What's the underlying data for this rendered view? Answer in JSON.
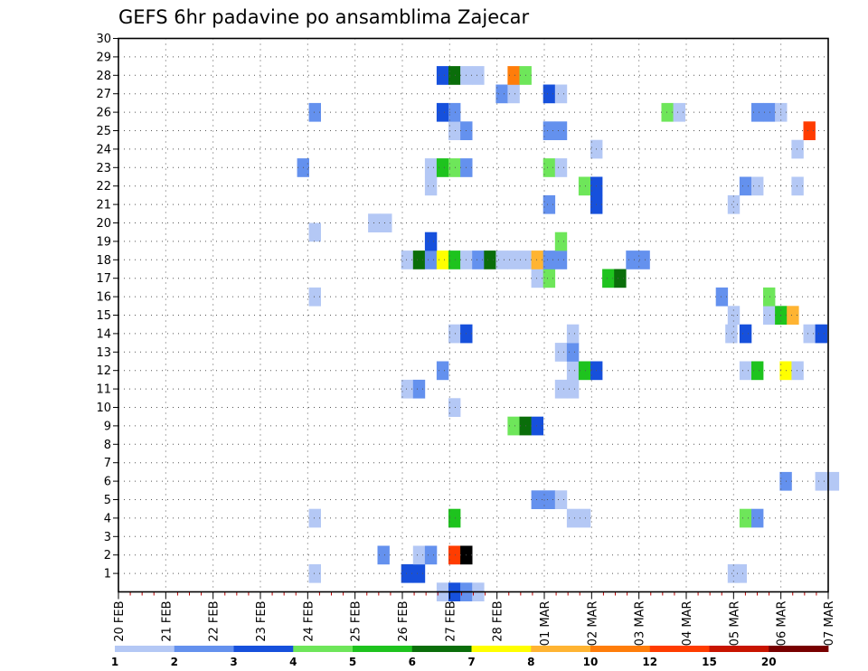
{
  "chart_data": {
    "type": "heatmap",
    "title": "GEFS 6hr padavine po ansamblima Zajecar",
    "x_labels": [
      "20 FEB",
      "21 FEB",
      "22 FEB",
      "23 FEB",
      "24 FEB",
      "25 FEB",
      "26 FEB",
      "27 FEB",
      "28 FEB",
      "01 MAR",
      "02 MAR",
      "03 MAR",
      "04 MAR",
      "05 MAR",
      "06 MAR",
      "07 MAR"
    ],
    "x_range_days": [
      0,
      15
    ],
    "y_ticks": [
      1,
      2,
      3,
      4,
      5,
      6,
      7,
      8,
      9,
      10,
      11,
      12,
      13,
      14,
      15,
      16,
      17,
      18,
      19,
      20,
      21,
      22,
      23,
      24,
      25,
      26,
      27,
      28,
      29,
      30
    ],
    "y_range": [
      0,
      30
    ],
    "grid": true,
    "legend": {
      "placement": "bottom",
      "labels": [
        "1",
        "2",
        "3",
        "4",
        "5",
        "6",
        "7",
        "8",
        "10",
        "12",
        "15",
        "20"
      ],
      "colors": [
        "#b4c8f5",
        "#6491ee",
        "#1650dc",
        "#6ee65a",
        "#1ec31e",
        "#0a6e0a",
        "#ffff00",
        "#ffb432",
        "#ff7d0a",
        "#ff3c00",
        "#c81400",
        "#780000"
      ]
    },
    "cells": [
      [
        6.85,
        0,
        1
      ],
      [
        7.1,
        0,
        3
      ],
      [
        7.35,
        0,
        2
      ],
      [
        7.6,
        0,
        1
      ],
      [
        4.15,
        1,
        1
      ],
      [
        6.1,
        1,
        3
      ],
      [
        6.35,
        1,
        3
      ],
      [
        13.0,
        1,
        1
      ],
      [
        13.15,
        1,
        1
      ],
      [
        5.6,
        2,
        2
      ],
      [
        6.35,
        2,
        1
      ],
      [
        6.6,
        2,
        2
      ],
      [
        7.1,
        2,
        10
      ],
      [
        7.35,
        2,
        15
      ],
      [
        4.15,
        4,
        1
      ],
      [
        7.1,
        4,
        5
      ],
      [
        9.6,
        4,
        1
      ],
      [
        9.85,
        4,
        1
      ],
      [
        13.25,
        4,
        4
      ],
      [
        13.5,
        4,
        2
      ],
      [
        8.85,
        5,
        2
      ],
      [
        9.1,
        5,
        2
      ],
      [
        9.35,
        5,
        1
      ],
      [
        14.1,
        6,
        2
      ],
      [
        14.85,
        6,
        1
      ],
      [
        15.1,
        6,
        1
      ],
      [
        8.35,
        9,
        4
      ],
      [
        8.6,
        9,
        6
      ],
      [
        8.85,
        9,
        3
      ],
      [
        7.1,
        10,
        1
      ],
      [
        6.1,
        11,
        1
      ],
      [
        6.35,
        11,
        2
      ],
      [
        9.35,
        11,
        1
      ],
      [
        9.6,
        11,
        1
      ],
      [
        6.85,
        12,
        2
      ],
      [
        9.6,
        12,
        1
      ],
      [
        9.85,
        12,
        5
      ],
      [
        10.1,
        12,
        3
      ],
      [
        13.25,
        12,
        1
      ],
      [
        13.5,
        12,
        5
      ],
      [
        14.1,
        12,
        7
      ],
      [
        14.35,
        12,
        1
      ],
      [
        9.35,
        13,
        1
      ],
      [
        9.6,
        13,
        2
      ],
      [
        7.1,
        14,
        1
      ],
      [
        7.35,
        14,
        3
      ],
      [
        9.6,
        14,
        1
      ],
      [
        12.95,
        14,
        1
      ],
      [
        13.25,
        14,
        3
      ],
      [
        14.6,
        14,
        1
      ],
      [
        14.85,
        14,
        3
      ],
      [
        13.0,
        15,
        1
      ],
      [
        13.75,
        15,
        1
      ],
      [
        14.0,
        15,
        5
      ],
      [
        14.25,
        15,
        8
      ],
      [
        4.15,
        16,
        1
      ],
      [
        12.75,
        16,
        2
      ],
      [
        13.75,
        16,
        4
      ],
      [
        8.85,
        17,
        1
      ],
      [
        9.1,
        17,
        4
      ],
      [
        10.35,
        17,
        5
      ],
      [
        10.6,
        17,
        6
      ],
      [
        6.1,
        18,
        1
      ],
      [
        6.35,
        18,
        6
      ],
      [
        6.6,
        18,
        2
      ],
      [
        6.85,
        18,
        7
      ],
      [
        7.1,
        18,
        5
      ],
      [
        7.35,
        18,
        1
      ],
      [
        7.6,
        18,
        2
      ],
      [
        7.85,
        18,
        6
      ],
      [
        8.1,
        18,
        1
      ],
      [
        8.35,
        18,
        1
      ],
      [
        8.6,
        18,
        1
      ],
      [
        8.85,
        18,
        8
      ],
      [
        9.1,
        18,
        2
      ],
      [
        9.35,
        18,
        2
      ],
      [
        10.85,
        18,
        2
      ],
      [
        11.1,
        18,
        2
      ],
      [
        6.6,
        19,
        3
      ],
      [
        9.35,
        19,
        4
      ],
      [
        4.15,
        19.5,
        1
      ],
      [
        5.4,
        20,
        1
      ],
      [
        5.65,
        20,
        1
      ],
      [
        9.1,
        21,
        2
      ],
      [
        10.1,
        21,
        3
      ],
      [
        13.0,
        21,
        1
      ],
      [
        6.6,
        22,
        1
      ],
      [
        9.85,
        22,
        4
      ],
      [
        10.1,
        22,
        3
      ],
      [
        13.25,
        22,
        2
      ],
      [
        13.5,
        22,
        1
      ],
      [
        14.35,
        22,
        1
      ],
      [
        3.9,
        23,
        2
      ],
      [
        6.6,
        23,
        1
      ],
      [
        6.85,
        23,
        5
      ],
      [
        7.1,
        23,
        4
      ],
      [
        7.35,
        23,
        2
      ],
      [
        9.1,
        23,
        4
      ],
      [
        9.35,
        23,
        1
      ],
      [
        10.1,
        24,
        1
      ],
      [
        14.35,
        24,
        1
      ],
      [
        7.1,
        25,
        1
      ],
      [
        7.35,
        25,
        2
      ],
      [
        9.1,
        25,
        2
      ],
      [
        9.35,
        25,
        2
      ],
      [
        14.6,
        25,
        10
      ],
      [
        4.15,
        26,
        2
      ],
      [
        6.85,
        26,
        3
      ],
      [
        7.1,
        26,
        2
      ],
      [
        11.6,
        26,
        4
      ],
      [
        11.85,
        26,
        1
      ],
      [
        13.5,
        26,
        2
      ],
      [
        13.75,
        26,
        2
      ],
      [
        14.0,
        26,
        1
      ],
      [
        8.1,
        27,
        2
      ],
      [
        8.35,
        27,
        1
      ],
      [
        9.1,
        27,
        3
      ],
      [
        9.35,
        27,
        1
      ],
      [
        6.85,
        28,
        3
      ],
      [
        7.1,
        28,
        6
      ],
      [
        7.35,
        28,
        1
      ],
      [
        7.6,
        28,
        1
      ],
      [
        8.35,
        28,
        9
      ],
      [
        8.6,
        28,
        4
      ]
    ]
  }
}
